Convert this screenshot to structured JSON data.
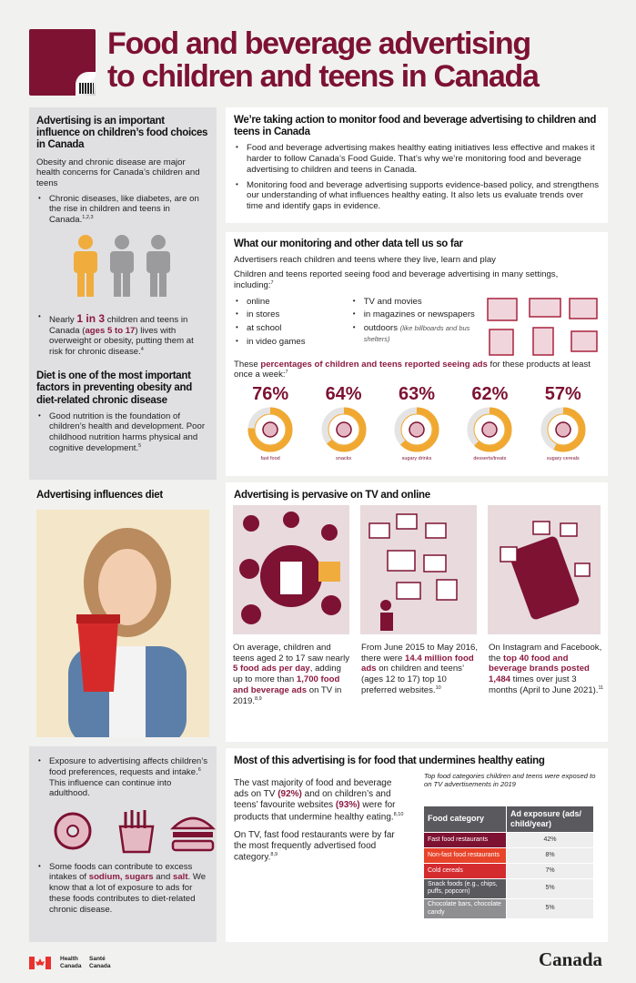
{
  "header": {
    "title_line1": "Food and beverage advertising",
    "title_line2": "to children and teens in Canada"
  },
  "colors": {
    "brand": "#7d1233",
    "accent": "#f0a830",
    "grey_panel": "#e0e0e2"
  },
  "left": {
    "h1": "Advertising is an important influence on children’s food choices in Canada",
    "intro": "Obesity and chronic disease are major health concerns for Canada’s children and teens",
    "b1": "Chronic diseases, like diabetes, are on the rise in children and teens in Canada.",
    "b1_ref": "1,2,3",
    "b2_pre": "Nearly ",
    "b2_hl": "1 in 3",
    "b2_mid": " children and teens in Canada (",
    "b2_hl2": "ages 5 to 17",
    "b2_post": ") lives with overweight or obesity, putting them at risk for chronic disease.",
    "b2_ref": "4",
    "h2": "Diet is one of the most important factors in preventing obesity and diet-related chronic disease",
    "b3": "Good nutrition is the foundation of children’s health and development. Poor childhood nutrition harms physical and cognitive development.",
    "b3_ref": "5",
    "h3": "Advertising influences diet",
    "b4": "Exposure to advertising affects children’s food preferences, requests and intake.",
    "b4_ref": "6",
    "b4_post": " This influence can continue into adulthood.",
    "b5_pre": "Some foods can contribute to excess intakes of ",
    "b5_hl": "sodium, sugars",
    "b5_mid": " and ",
    "b5_hl2": "salt",
    "b5_post": ". We know that a lot of exposure to ads for these foods contributes to diet-related chronic disease."
  },
  "action": {
    "title": "We’re taking action to monitor food and beverage advertising to children and teens in Canada",
    "b1": "Food and beverage advertising makes healthy eating initiatives less effective and makes it harder to follow Canada’s Food Guide. That’s why we’re monitoring food and beverage advertising to children and teens in Canada.",
    "b2": "Monitoring food and beverage advertising supports evidence-based policy, and strengthens our understanding of what influences healthy eating. It also lets us evaluate trends over time and identify gaps in evidence."
  },
  "monitoring": {
    "title": "What our monitoring and other data tell us so far",
    "p1": "Advertisers reach children and teens where they live, learn and play",
    "p2": "Children and teens reported seeing food and beverage advertising in many settings, including:",
    "p2_ref": "7",
    "settings_col1": [
      "online",
      "in stores",
      "at school",
      "in video games"
    ],
    "settings_col2": [
      "TV and movies",
      "in magazines or newspapers",
      "outdoors"
    ],
    "outdoors_note": "(like billboards and bus shelters)",
    "p3_hl": "percentages of children and teens reported seeing ads",
    "p3_pre": "These ",
    "p3_post": " for these products at least once a week:",
    "p3_ref": "7",
    "products": [
      {
        "pct": "76%",
        "value": 76,
        "label": "fast food"
      },
      {
        "pct": "64%",
        "value": 64,
        "label": "snacks"
      },
      {
        "pct": "63%",
        "value": 63,
        "label": "sugary drinks"
      },
      {
        "pct": "62%",
        "value": 62,
        "label": "desserts/treats"
      },
      {
        "pct": "57%",
        "value": 57,
        "label": "sugary cereals"
      }
    ]
  },
  "pervasive": {
    "title": "Advertising is pervasive on TV and online",
    "c1": {
      "t1": "On average, children and teens aged 2 to 17 saw nearly ",
      "h1": "5 food ads per day",
      "t2": ", adding up to more than ",
      "h2": "1,700 food and beverage ads",
      "t3": " on TV in 2019.",
      "ref": "8,9"
    },
    "c2": {
      "t1": "From June 2015 to May 2016, there were ",
      "h1": "14.4 million food ads",
      "t2": " on children and teens’ (ages 12 to 17) top 10 preferred websites.",
      "ref": "10"
    },
    "c3": {
      "t1": "On Instagram and Facebook, the ",
      "h1": "top 40 food and beverage brands posted 1,484",
      "t2": " times over just 3 months (April to June 2021).",
      "ref": "11"
    }
  },
  "undermine": {
    "title": "Most of this advertising is for food that undermines healthy eating",
    "p1a": "The vast majority of food and beverage ads on TV ",
    "p1h": "(92%)",
    "p1b": " and on children’s and teens’ favourite websites ",
    "p1h2": "(93%)",
    "p1c": " were for products that undermine healthy eating.",
    "p1_ref": "8,10",
    "p2": "On TV, fast food restaurants were by far the most frequently advertised food category.",
    "p2_ref": "8,9",
    "caption": "Top food categories children and teens were exposed to on TV advertisements in 2019",
    "table": {
      "headers": [
        "Food category",
        "Ad exposure (ads/ child/year)"
      ],
      "rows": [
        {
          "cat": "Fast food restaurants",
          "val": "42%",
          "color": "#7d1233"
        },
        {
          "cat": "Non-fast food restaurants",
          "val": "8%",
          "color": "#e8442a"
        },
        {
          "cat": "Cold cereals",
          "val": "7%",
          "color": "#d42b2f"
        },
        {
          "cat": "Snack foods (e.g., chips, puffs, popcorn)",
          "val": "5%",
          "color": "#5a5a5e"
        },
        {
          "cat": "Chocolate bars, chocolate candy",
          "val": "5%",
          "color": "#8f8f92"
        }
      ]
    }
  },
  "footer": {
    "health_en": "Health Canada",
    "health_fr": "Santé Canada",
    "wordmark": "Canada"
  }
}
